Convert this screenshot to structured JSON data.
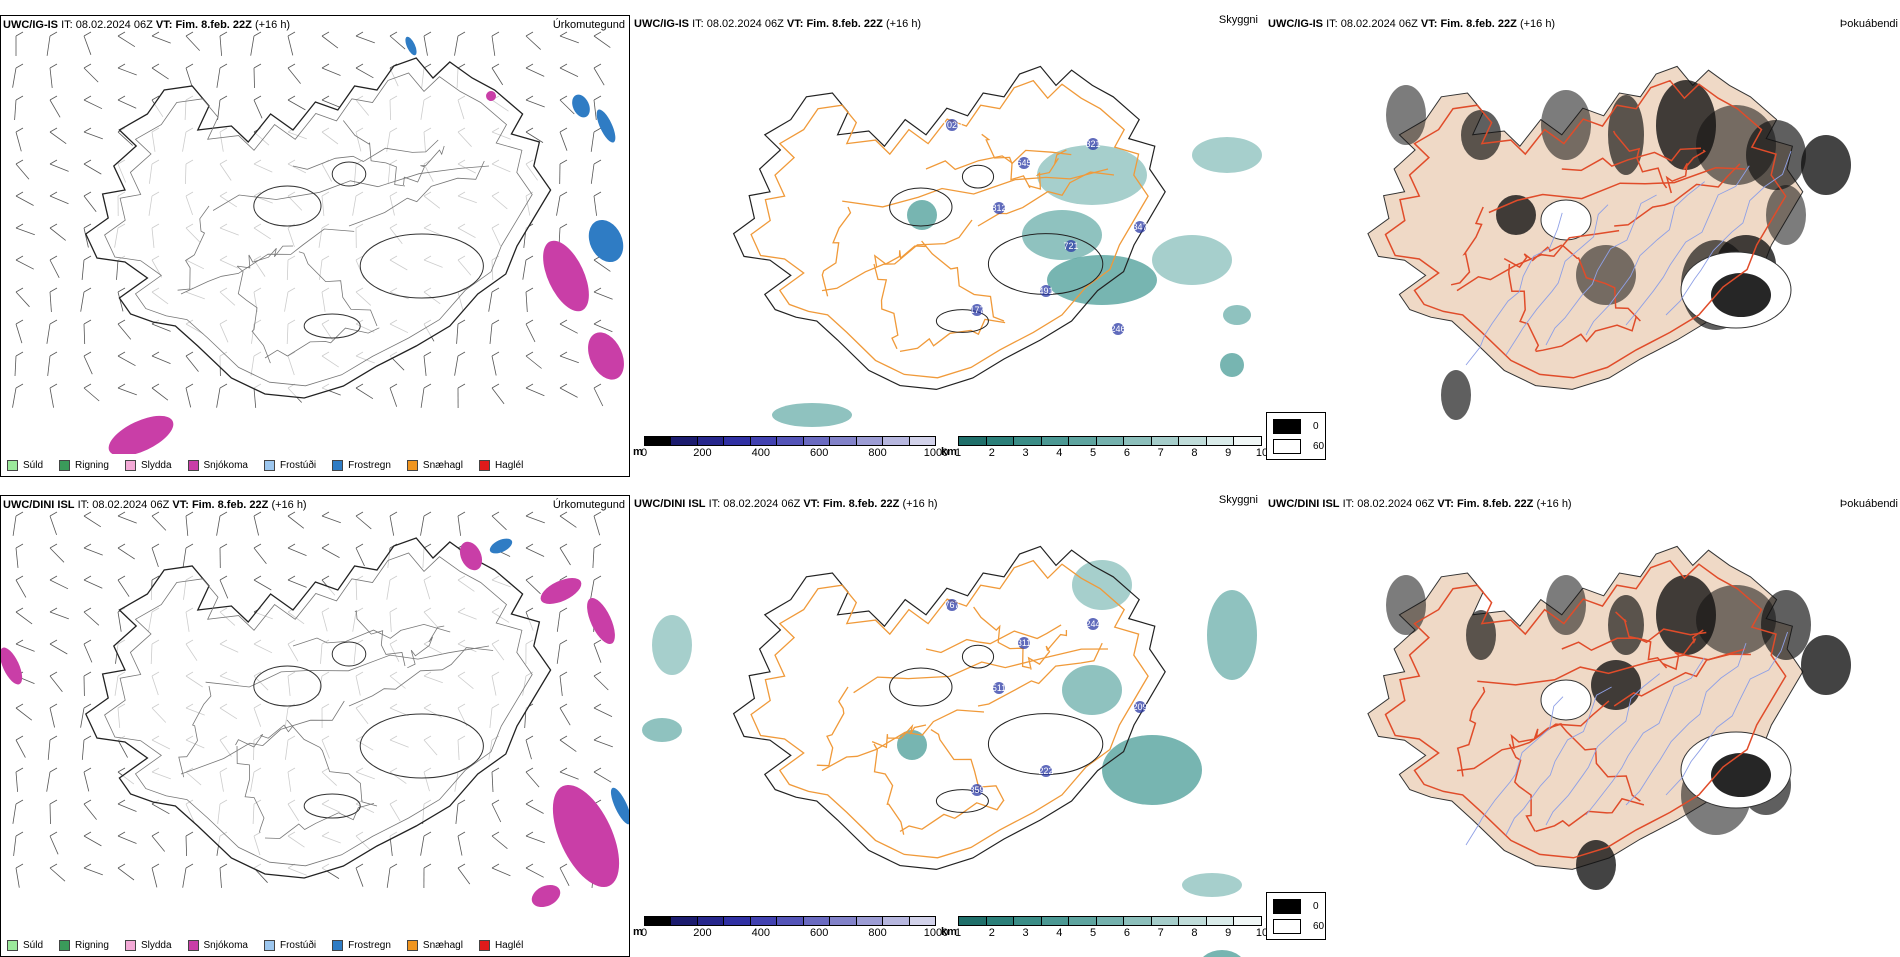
{
  "colors": {
    "island_fill": "#efd9c6",
    "road_orange": "#f09a3a",
    "road_red": "#e04c2a",
    "cloud_teal": "#3a948e",
    "precip_magenta": "#c93ea7",
    "precip_blue": "#2f7cc4",
    "ceiling_blue": "#2b3aa6"
  },
  "rows": [
    {
      "model": "UWC/IG-IS",
      "it_label": "IT:",
      "it_value": "08.02.2024 06Z",
      "vt_label": "VT:",
      "vt_value": "Fim. 8.feb. 22Z",
      "lead": "(+16 h)",
      "panel_titles": [
        "Úrkomutegund",
        "Skyggni",
        "Þokuábendi"
      ],
      "ceiling_labels": [
        "1020",
        "812",
        "491",
        "321",
        "347",
        "177",
        "645",
        "721",
        "246"
      ]
    },
    {
      "model": "UWC/DINI ISL",
      "it_label": "IT:",
      "it_value": "08.02.2024 06Z",
      "vt_label": "VT:",
      "vt_value": "Fim. 8.feb. 22Z",
      "lead": "(+16 h)",
      "panel_titles": [
        "Úrkomutegund",
        "Skyggni",
        "Þokuábendi"
      ],
      "ceiling_labels": [
        "767",
        "511",
        "222",
        "244",
        "209",
        "359",
        "311"
      ]
    }
  ],
  "precip_legend": [
    {
      "label": "Súld",
      "color": "#9be89b"
    },
    {
      "label": "Rigning",
      "color": "#3a9a5a"
    },
    {
      "label": "Slydda",
      "color": "#f3a9d6"
    },
    {
      "label": "Snjókoma",
      "color": "#c93ea7"
    },
    {
      "label": "Frostúði",
      "color": "#9cc6ee"
    },
    {
      "label": "Frostregn",
      "color": "#2f7cc4"
    },
    {
      "label": "Snæhagl",
      "color": "#f0951f"
    },
    {
      "label": "Haglél",
      "color": "#e01a1a"
    }
  ],
  "ceiling_scale": {
    "unit": "m",
    "ticks": [
      "0",
      "200",
      "400",
      "600",
      "800",
      "1000"
    ],
    "colors": [
      "#000000",
      "#1b1b6e",
      "#26268c",
      "#3030a3",
      "#4141b0",
      "#5454b8",
      "#6a6ac0",
      "#8282c9",
      "#9c9cd4",
      "#b7b7df",
      "#d2d2ea"
    ]
  },
  "vis_scale": {
    "unit": "km",
    "ticks": [
      "1",
      "2",
      "3",
      "4",
      "5",
      "6",
      "7",
      "8",
      "9",
      "10"
    ],
    "colors": [
      "#1f6f6a",
      "#2b7f79",
      "#3a8c86",
      "#4b9893",
      "#5ea49f",
      "#74b1ad",
      "#8cbfbb",
      "#a5cdca",
      "#bfdcd9",
      "#d9ebe9",
      "#f0f7f6"
    ]
  },
  "fog_legend": {
    "black_label": "0",
    "white_label": "60"
  }
}
